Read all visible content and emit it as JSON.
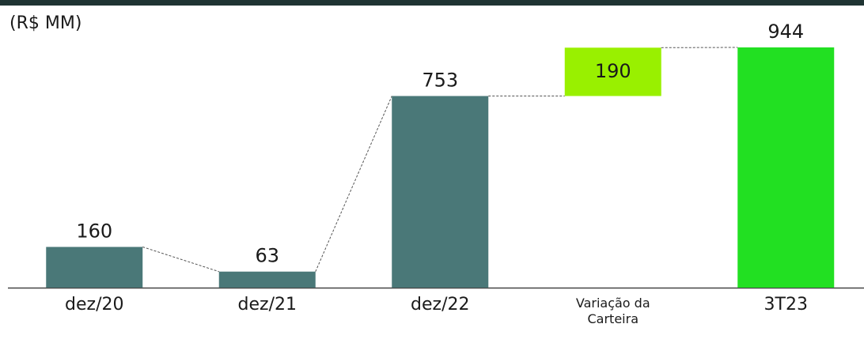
{
  "chart_data": {
    "type": "waterfall",
    "subtitle": "(R$ MM)",
    "categories": [
      "dez/20",
      "dez/21",
      "dez/22",
      "Variação da Carteira",
      "3T23"
    ],
    "values": [
      160,
      63,
      753,
      190,
      944
    ],
    "measure": [
      "absolute",
      "absolute",
      "absolute",
      "relative",
      "total"
    ],
    "colors": [
      "#4a7878",
      "#4a7878",
      "#4a7878",
      "#99f000",
      "#22e022"
    ]
  }
}
